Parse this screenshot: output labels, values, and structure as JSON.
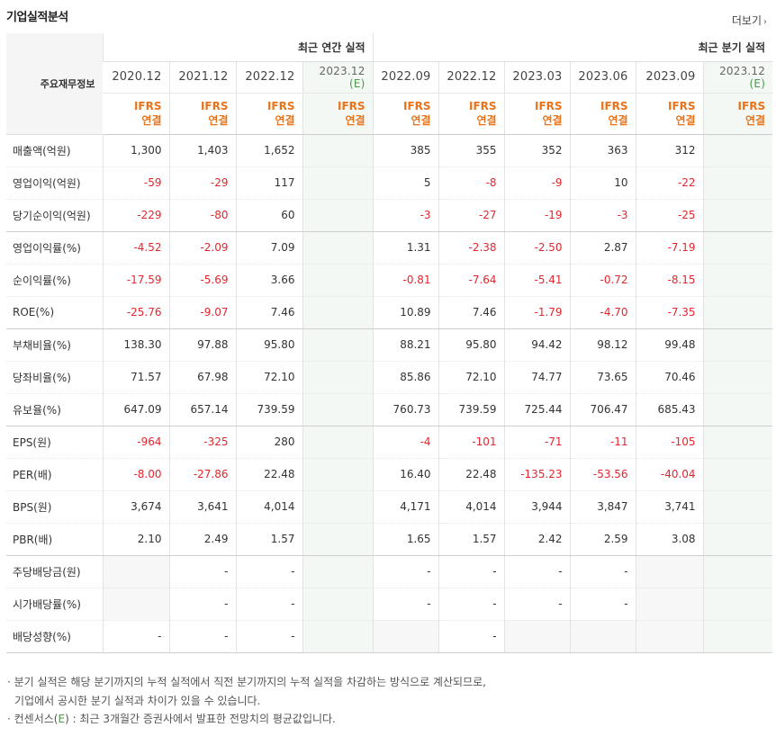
{
  "header": {
    "title": "기업실적분석",
    "more_label": "더보기"
  },
  "table": {
    "label_header": "주요재무정보",
    "group_annual": "최근 연간 실적",
    "group_quarter": "최근 분기 실적",
    "periods": [
      {
        "date": "2020.12",
        "est": "",
        "ifrs": "IFRS",
        "basis": "연결"
      },
      {
        "date": "2021.12",
        "est": "",
        "ifrs": "IFRS",
        "basis": "연결"
      },
      {
        "date": "2022.12",
        "est": "",
        "ifrs": "IFRS",
        "basis": "연결"
      },
      {
        "date": "2023.12",
        "est": "(E)",
        "ifrs": "IFRS",
        "basis": "연결"
      },
      {
        "date": "2022.09",
        "est": "",
        "ifrs": "IFRS",
        "basis": "연결"
      },
      {
        "date": "2022.12",
        "est": "",
        "ifrs": "IFRS",
        "basis": "연결"
      },
      {
        "date": "2023.03",
        "est": "",
        "ifrs": "IFRS",
        "basis": "연결"
      },
      {
        "date": "2023.06",
        "est": "",
        "ifrs": "IFRS",
        "basis": "연결"
      },
      {
        "date": "2023.09",
        "est": "",
        "ifrs": "IFRS",
        "basis": "연결"
      },
      {
        "date": "2023.12",
        "est": "(E)",
        "ifrs": "IFRS",
        "basis": "연결"
      }
    ],
    "rows": [
      {
        "label": "매출액(억원)",
        "values": [
          "1,300",
          "1,403",
          "1,652",
          "",
          "385",
          "355",
          "352",
          "363",
          "312",
          ""
        ]
      },
      {
        "label": "영업이익(억원)",
        "values": [
          "-59",
          "-29",
          "117",
          "",
          "5",
          "-8",
          "-9",
          "10",
          "-22",
          ""
        ]
      },
      {
        "label": "당기순이익(억원)",
        "values": [
          "-229",
          "-80",
          "60",
          "",
          "-3",
          "-27",
          "-19",
          "-3",
          "-25",
          ""
        ],
        "group_end": true
      },
      {
        "label": "영업이익률(%)",
        "values": [
          "-4.52",
          "-2.09",
          "7.09",
          "",
          "1.31",
          "-2.38",
          "-2.50",
          "2.87",
          "-7.19",
          ""
        ]
      },
      {
        "label": "순이익률(%)",
        "values": [
          "-17.59",
          "-5.69",
          "3.66",
          "",
          "-0.81",
          "-7.64",
          "-5.41",
          "-0.72",
          "-8.15",
          ""
        ]
      },
      {
        "label": "ROE(%)",
        "values": [
          "-25.76",
          "-9.07",
          "7.46",
          "",
          "10.89",
          "7.46",
          "-1.79",
          "-4.70",
          "-7.35",
          ""
        ],
        "group_end": true
      },
      {
        "label": "부채비율(%)",
        "values": [
          "138.30",
          "97.88",
          "95.80",
          "",
          "88.21",
          "95.80",
          "94.42",
          "98.12",
          "99.48",
          ""
        ]
      },
      {
        "label": "당좌비율(%)",
        "values": [
          "71.57",
          "67.98",
          "72.10",
          "",
          "85.86",
          "72.10",
          "74.77",
          "73.65",
          "70.46",
          ""
        ]
      },
      {
        "label": "유보율(%)",
        "values": [
          "647.09",
          "657.14",
          "739.59",
          "",
          "760.73",
          "739.59",
          "725.44",
          "706.47",
          "685.43",
          ""
        ],
        "group_end": true
      },
      {
        "label": "EPS(원)",
        "values": [
          "-964",
          "-325",
          "280",
          "",
          "-4",
          "-101",
          "-71",
          "-11",
          "-105",
          ""
        ]
      },
      {
        "label": "PER(배)",
        "values": [
          "-8.00",
          "-27.86",
          "22.48",
          "",
          "16.40",
          "22.48",
          "-135.23",
          "-53.56",
          "-40.04",
          ""
        ]
      },
      {
        "label": "BPS(원)",
        "values": [
          "3,674",
          "3,641",
          "4,014",
          "",
          "4,171",
          "4,014",
          "3,944",
          "3,847",
          "3,741",
          ""
        ]
      },
      {
        "label": "PBR(배)",
        "values": [
          "2.10",
          "2.49",
          "1.57",
          "",
          "1.65",
          "1.57",
          "2.42",
          "2.59",
          "3.08",
          ""
        ],
        "group_end": true
      },
      {
        "label": "주당배당금(원)",
        "values": [
          "",
          "-",
          "-",
          "",
          "-",
          "-",
          "-",
          "-",
          "",
          ""
        ],
        "blank": [
          0,
          8
        ]
      },
      {
        "label": "시가배당률(%)",
        "values": [
          "",
          "-",
          "-",
          "",
          "-",
          "-",
          "-",
          "-",
          "",
          ""
        ],
        "blank": [
          0,
          8
        ]
      },
      {
        "label": "배당성향(%)",
        "values": [
          "-",
          "-",
          "-",
          "",
          "",
          "-",
          "",
          "",
          "",
          ""
        ],
        "blank": [
          4,
          6,
          7,
          8
        ],
        "group_end": true
      }
    ]
  },
  "notes": {
    "line1": "분기 실적은 해당 분기까지의 누적 실적에서 직전 분기까지의 누적 실적을 차감하는 방식으로 계산되므로,",
    "line2": "기업에서 공시한 분기 실적과 차이가 있을 수 있습니다.",
    "line3_pre": "컨센서스(",
    "line3_e": "E",
    "line3_post": ") : 최근 3개월간 증권사에서 발표한 전망치의 평균값입니다."
  },
  "colors": {
    "negative": "#e3262d",
    "ifrs": "#e8731a",
    "estimate_bg": "#f4f8f4",
    "estimate_mark": "#4a9a4a"
  }
}
